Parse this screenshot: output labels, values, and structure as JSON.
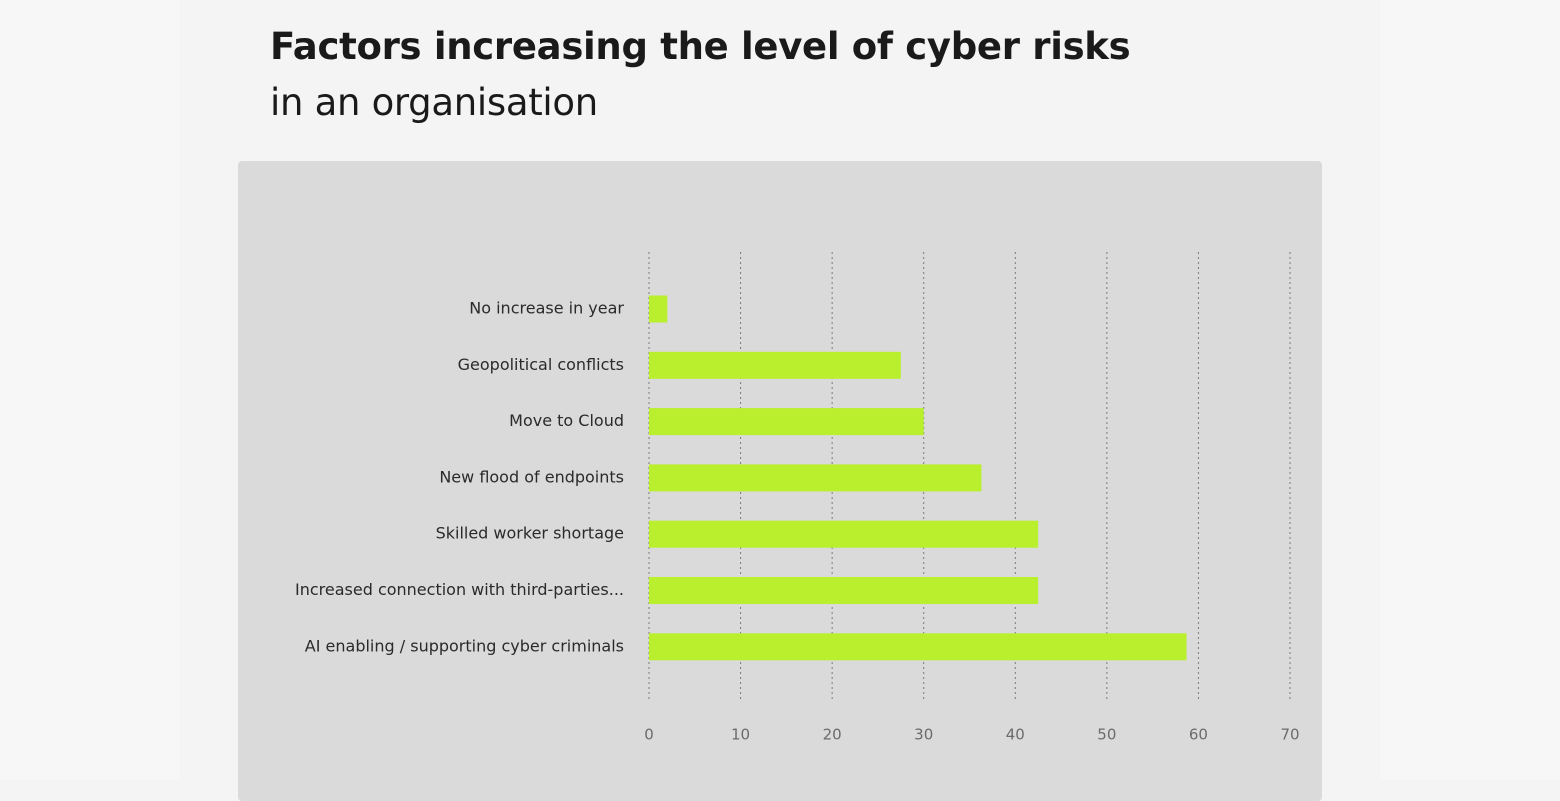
{
  "header": {
    "title": "Factors increasing the level of cyber risks",
    "subtitle": "in an organisation"
  },
  "colors": {
    "bar": "#b9ef2c",
    "panel": "#dadada",
    "grid": "#7a7a7a"
  },
  "chart_data": {
    "type": "bar",
    "orientation": "horizontal",
    "title": "Factors increasing the level of cyber risks in an organisation",
    "categories": [
      "No increase in year",
      "Geopolitical conflicts",
      "Move to Cloud",
      "New flood of endpoints",
      "Skilled worker shortage",
      "Increased connection with third-parties...",
      "AI enabling / supporting cyber criminals"
    ],
    "values": [
      2,
      27.5,
      30,
      36.3,
      42.5,
      42.5,
      58.7
    ],
    "xlim": [
      0,
      70
    ],
    "xticks": [
      0,
      10,
      20,
      30,
      40,
      50,
      60,
      70
    ],
    "grid": "vertical dotted",
    "legend": "none"
  }
}
